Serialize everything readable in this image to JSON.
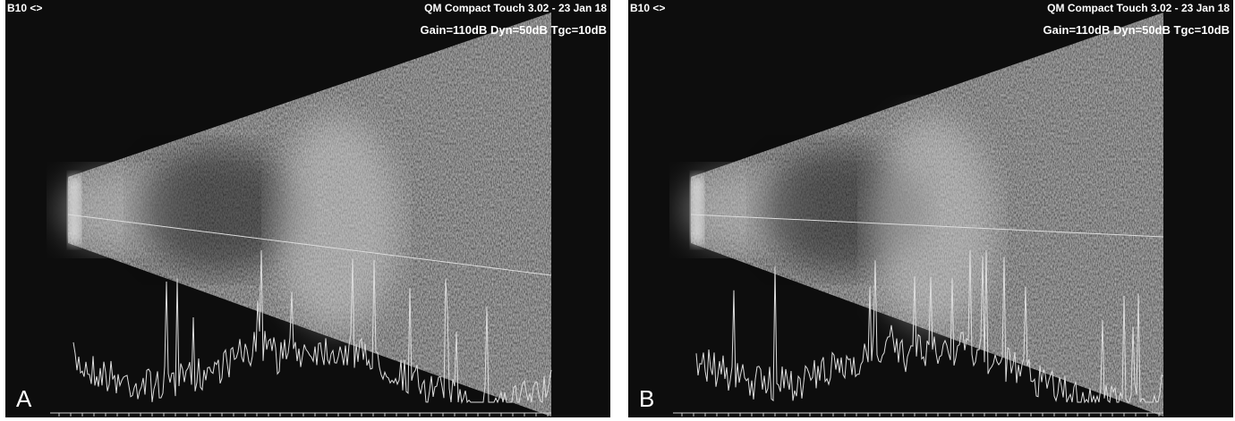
{
  "panels": [
    {
      "label": "A",
      "mode": "B10 <>",
      "device": "QM Compact Touch 3.02 - 23 Jan 18",
      "settings": "Gain=110dB Dyn=50dB Tgc=10dB"
    },
    {
      "label": "B",
      "mode": "B10 <>",
      "device": "QM Compact Touch 3.02 - 23 Jan 18",
      "settings": "Gain=110dB Dyn=50dB Tgc=10dB"
    }
  ]
}
